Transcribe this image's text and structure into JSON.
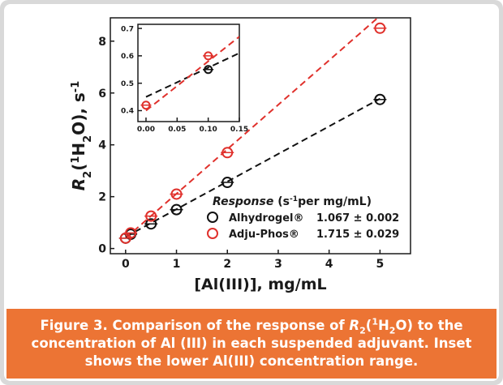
{
  "chart_data": {
    "type": "scatter",
    "xlabel": "[Al(III)], mg/mL",
    "ylabel": [
      {
        "text": "R",
        "italic": true
      },
      {
        "text": "2",
        "sub": true
      },
      {
        "text": "("
      },
      {
        "text": "1",
        "sup": true
      },
      {
        "text": "H"
      },
      {
        "text": "2",
        "sub": true
      },
      {
        "text": "O), s"
      },
      {
        "text": "-1",
        "sup": true
      }
    ],
    "xlim": [
      -0.3,
      5.6
    ],
    "ylim": [
      -0.2,
      8.9
    ],
    "xticks": [
      0,
      1,
      2,
      3,
      4,
      5
    ],
    "yticks": [
      0,
      2,
      4,
      6,
      8
    ],
    "legend_title": [
      {
        "text": "Response",
        "italic": true
      },
      {
        "text": " (s"
      },
      {
        "text": "-1",
        "sup": true
      },
      {
        "text": "per mg/mL)"
      }
    ],
    "series": [
      {
        "name": "Alhydrogel®",
        "slope_label": "1.067 ± 0.002",
        "color": "#111111",
        "x": [
          0,
          0.1,
          0.5,
          1,
          2,
          5
        ],
        "values": [
          0.4,
          0.55,
          0.95,
          1.5,
          2.55,
          5.75
        ],
        "fit": {
          "x": [
            0,
            5
          ],
          "values": [
            0.45,
            5.78
          ]
        }
      },
      {
        "name": "Adju-Phos®",
        "slope_label": "1.715 ± 0.029",
        "color": "#e0312c",
        "x": [
          0,
          0.1,
          0.5,
          1,
          2,
          5
        ],
        "values": [
          0.4,
          0.6,
          1.25,
          2.1,
          3.7,
          8.5
        ],
        "fit": {
          "x": [
            0,
            4.95
          ],
          "values": [
            0.4,
            8.89
          ]
        }
      }
    ],
    "inset": {
      "xlim": [
        -0.013,
        0.15
      ],
      "ylim": [
        0.36,
        0.715
      ],
      "xticks": [
        {
          "value": 0,
          "label": "0.00"
        },
        {
          "value": 0.05,
          "label": "0.05"
        },
        {
          "value": 0.1,
          "label": "0.10"
        },
        {
          "value": 0.15,
          "label": "0.15"
        }
      ],
      "yticks": [
        0.4,
        0.5,
        0.6,
        0.7
      ],
      "series": [
        {
          "color": "#111111",
          "x": [
            0.1
          ],
          "values": [
            0.55
          ],
          "fit": {
            "x": [
              0,
              0.15
            ],
            "values": [
              0.45,
              0.61
            ]
          }
        },
        {
          "color": "#e0312c",
          "x": [
            0,
            0.1
          ],
          "values": [
            0.42,
            0.6
          ],
          "fit": {
            "x": [
              0,
              0.15
            ],
            "values": [
              0.4,
              0.67
            ]
          }
        }
      ]
    }
  },
  "caption": [
    {
      "text": "Figure 3. Comparison of the response of "
    },
    {
      "text": "R",
      "italic": true
    },
    {
      "text": "2",
      "sub": true
    },
    {
      "text": "("
    },
    {
      "text": "1",
      "sup": true
    },
    {
      "text": "H"
    },
    {
      "text": "2",
      "sub": true
    },
    {
      "text": "O) to the concentration of Al (III) in each suspended adjuvant. Inset shows the lower Al(III) concentration range."
    }
  ]
}
